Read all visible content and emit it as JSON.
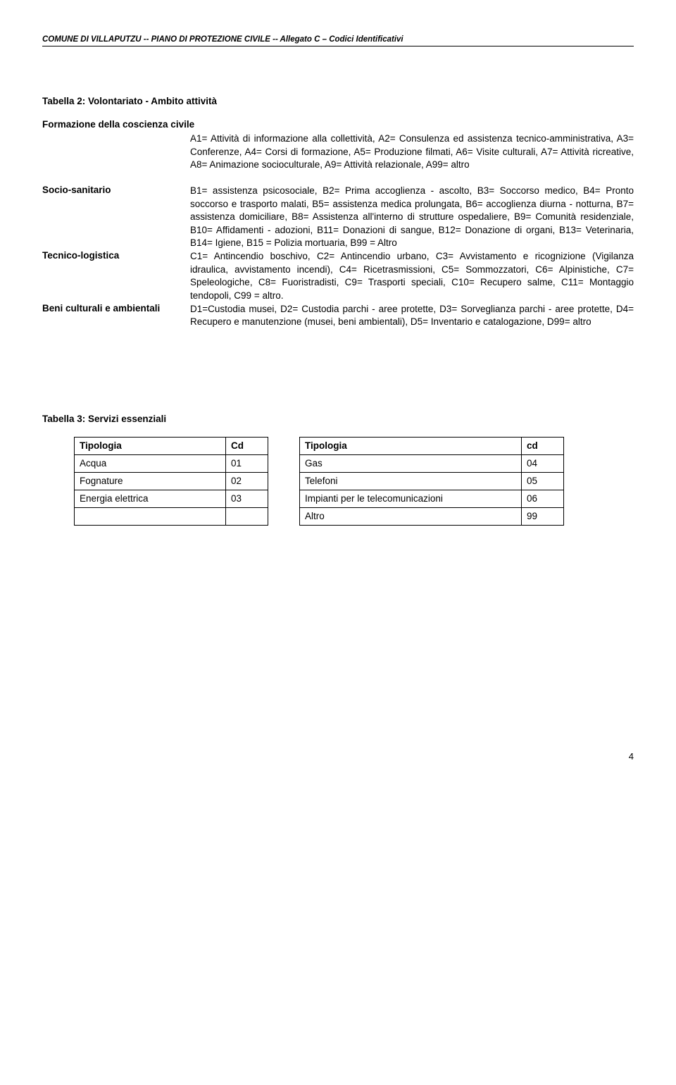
{
  "header": "COMUNE DI VILLAPUTZU -- PIANO DI PROTEZIONE CIVILE -- Allegato C – Codici Identificativi",
  "tab2": {
    "title": "Tabella 2: Volontariato - Ambito attività",
    "formazione_label": "Formazione della coscienza civile",
    "formazione_text": "A1= Attività di informazione alla collettività, A2= Consulenza ed assistenza tecnico-amministrativa, A3= Conferenze, A4= Corsi di formazione, A5= Produzione filmati, A6= Visite culturali, A7= Attività ricreative, A8= Animazione socioculturale, A9= Attività relazionale, A99= altro",
    "socio_label": "Socio-sanitario",
    "socio_text": "B1= assistenza psicosociale, B2= Prima accoglienza - ascolto, B3= Soccorso medico, B4= Pronto soccorso e trasporto malati, B5= assistenza medica prolungata, B6= accoglienza diurna - notturna, B7= assistenza domiciliare, B8= Assistenza all'interno di strutture ospedaliere, B9= Comunità residenziale, B10= Affidamenti - adozioni, B11= Donazioni di sangue, B12= Donazione di organi, B13= Veterinaria, B14= Igiene, B15 = Polizia mortuaria, B99 = Altro",
    "tecnico_label": "Tecnico-logistica",
    "tecnico_text": "C1= Antincendio boschivo, C2= Antincendio urbano, C3= Avvistamento e ricognizione (Vigilanza idraulica, avvistamento incendi), C4= Ricetrasmissioni, C5= Sommozzatori, C6= Alpinistiche, C7= Speleologiche, C8= Fuoristradisti, C9= Trasporti speciali, C10= Recupero salme, C11= Montaggio tendopoli, C99 = altro.",
    "beni_label": "Beni culturali e ambientali",
    "beni_text": "D1=Custodia musei, D2= Custodia parchi - aree protette, D3= Sorveglianza parchi - aree protette, D4= Recupero e manutenzione (musei, beni ambientali), D5= Inventario e catalogazione, D99= altro"
  },
  "tab3": {
    "title": "Tabella 3: Servizi essenziali",
    "headers": {
      "tipologia": "Tipologia",
      "cd": "Cd",
      "tipologia2": "Tipologia",
      "cd2": "cd"
    },
    "rows": [
      {
        "a": "Acqua",
        "b": "01",
        "c": "Gas",
        "d": "04"
      },
      {
        "a": "Fognature",
        "b": "02",
        "c": "Telefoni",
        "d": "05"
      },
      {
        "a": "Energia elettrica",
        "b": "03",
        "c": "Impianti per le telecomunicazioni",
        "d": "06"
      },
      {
        "a": "",
        "b": "",
        "c": "Altro",
        "d": "99"
      }
    ]
  },
  "page_number": "4"
}
